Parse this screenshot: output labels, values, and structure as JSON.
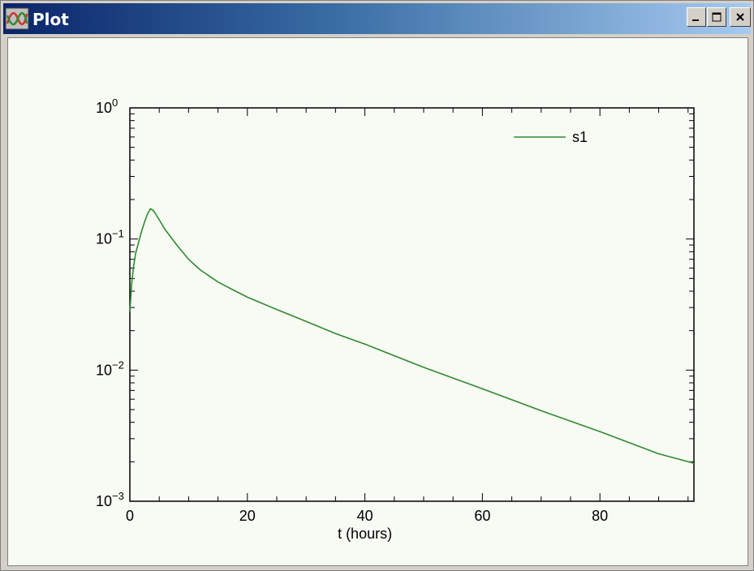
{
  "window": {
    "title": "Plot",
    "buttons": {
      "minimize_icon": "minimize-icon",
      "maximize_icon": "maximize-icon",
      "close_icon": "close-icon"
    }
  },
  "chart_data": {
    "type": "line",
    "xlabel": "t (hours)",
    "ylabel": "",
    "xlim": [
      0,
      96
    ],
    "ylim": [
      0.001,
      1
    ],
    "yscale": "log",
    "x_ticks": [
      "0",
      "20",
      "40",
      "60",
      "80"
    ],
    "y_ticks": [
      {
        "base": "10",
        "exp": "0"
      },
      {
        "base": "10",
        "exp": "−1"
      },
      {
        "base": "10",
        "exp": "−2"
      },
      {
        "base": "10",
        "exp": "−3"
      }
    ],
    "legend": {
      "position": "top-right"
    },
    "line_color": "#2e8b2e",
    "series": [
      {
        "name": "s1",
        "x": [
          0,
          0.3,
          0.6,
          1.0,
          1.5,
          2.0,
          2.5,
          3.0,
          3.5,
          4.0,
          5,
          6,
          8,
          10,
          12,
          15,
          18,
          20,
          25,
          30,
          35,
          40,
          50,
          60,
          70,
          80,
          90,
          96
        ],
        "y": [
          0.028,
          0.045,
          0.06,
          0.078,
          0.095,
          0.115,
          0.135,
          0.155,
          0.17,
          0.165,
          0.14,
          0.118,
          0.09,
          0.07,
          0.058,
          0.047,
          0.04,
          0.036,
          0.029,
          0.0235,
          0.019,
          0.0158,
          0.0105,
          0.0072,
          0.0049,
          0.0034,
          0.0023,
          0.00195
        ]
      }
    ]
  }
}
